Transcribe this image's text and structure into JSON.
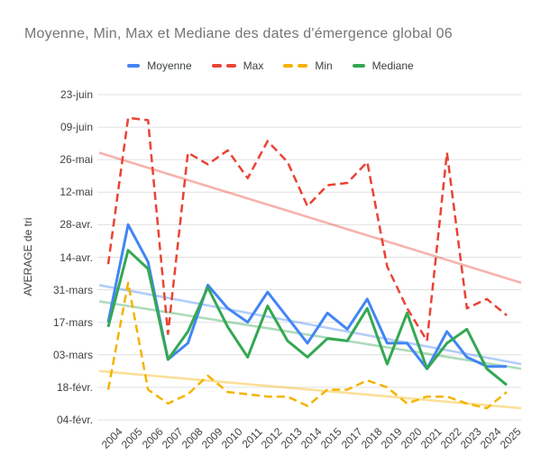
{
  "title": "Moyenne, Min, Max et Mediane des dates d'émergence global 06",
  "y_axis_title": "AVERAGE de tri",
  "colors": {
    "moyenne": "#4285F4",
    "max": "#EA4335",
    "min": "#F4B400",
    "mediane": "#34A853",
    "gridline": "#E0E0E0",
    "title_text": "#757575",
    "tick_text": "#424242"
  },
  "chart_data": {
    "type": "line",
    "title": "Moyenne, Min, Max et Mediane des dates d'émergence global 06",
    "ylabel": "AVERAGE de tri",
    "grid": "horizontal",
    "legend_position": "top",
    "categories": [
      "2004",
      "2005",
      "2006",
      "2007",
      "2008",
      "2009",
      "2010",
      "2011",
      "2012",
      "2013",
      "2014",
      "2015",
      "2017",
      "2018",
      "2019",
      "2020",
      "2021",
      "2022",
      "2023",
      "2024",
      "2025"
    ],
    "y_axis": {
      "tick_labels_top_to_bottom": [
        "23-juin",
        "09-juin",
        "26-mai",
        "12-mai",
        "28-avr.",
        "14-avr.",
        "31-mars",
        "17-mars",
        "03-mars",
        "18-févr.",
        "04-févr."
      ],
      "value_unit": "days after 04-févr.",
      "ylim_days": [
        0,
        140
      ]
    },
    "series": [
      {
        "name": "Moyenne",
        "color": "#4285F4",
        "style": "solid",
        "values_days": [
          42,
          84,
          68,
          26,
          33,
          58,
          48,
          42,
          55,
          44,
          33,
          46,
          39,
          52,
          33,
          33,
          22,
          38,
          27,
          23,
          23
        ],
        "values_dates": [
          "17-mars",
          "28-avr.",
          "12-avr.",
          "01-mars",
          "08-mars",
          "02-avr.",
          "23-mars",
          "17-mars",
          "30-mars",
          "19-mars",
          "08-mars",
          "21-mars",
          "14-mars",
          "27-mars",
          "08-mars",
          "08-mars",
          "26-févr.",
          "13-mars",
          "02-mars",
          "27-févr.",
          "27-févr."
        ]
      },
      {
        "name": "Max",
        "color": "#EA4335",
        "style": "dashed",
        "values_days": [
          67,
          130,
          129,
          37,
          115,
          110,
          116,
          104,
          120,
          111,
          92,
          101,
          102,
          111,
          66,
          48,
          34,
          115,
          48,
          52,
          45
        ],
        "values_dates": [
          "11-avr.",
          "13-juin",
          "12-juin",
          "12-mars",
          "29-mai",
          "24-mai",
          "30-mai",
          "18-mai",
          "03-juin",
          "25-mai",
          "06-mai",
          "15-mai",
          "16-mai",
          "25-mai",
          "10-avr.",
          "23-mars",
          "09-mars",
          "29-mai",
          "23-mars",
          "27-mars",
          "20-mars"
        ]
      },
      {
        "name": "Min",
        "color": "#F4B400",
        "style": "dashed",
        "values_days": [
          13,
          59,
          13,
          7,
          11,
          19,
          12,
          11,
          10,
          10,
          6,
          13,
          13,
          17,
          14,
          7,
          10,
          10,
          7,
          5,
          12
        ],
        "values_dates": [
          "17-févr.",
          "03-avr.",
          "17-févr.",
          "11-févr.",
          "15-févr.",
          "23-févr.",
          "16-févr.",
          "15-févr.",
          "14-févr.",
          "14-févr.",
          "10-févr.",
          "17-févr.",
          "17-févr.",
          "21-févr.",
          "18-févr.",
          "11-févr.",
          "14-févr.",
          "14-févr.",
          "11-févr.",
          "09-févr.",
          "16-févr."
        ]
      },
      {
        "name": "Mediane",
        "color": "#34A853",
        "style": "solid",
        "values_days": [
          40,
          73,
          65,
          26,
          38,
          57,
          40,
          27,
          49,
          34,
          27,
          35,
          34,
          48,
          24,
          46,
          22,
          33,
          39,
          22,
          15
        ],
        "values_dates": [
          "15-mars",
          "17-avr.",
          "09-avr.",
          "01-mars",
          "13-mars",
          "01-avr.",
          "15-mars",
          "02-mars",
          "24-mars",
          "09-mars",
          "02-mars",
          "10-mars",
          "09-mars",
          "23-mars",
          "28-févr.",
          "21-mars",
          "26-févr.",
          "08-mars",
          "14-mars",
          "26-févr.",
          "19-févr."
        ]
      }
    ],
    "trendlines": [
      {
        "series": "Moyenne",
        "color": "#4285F4",
        "start_day": 58,
        "end_day": 24
      },
      {
        "series": "Max",
        "color": "#EA4335",
        "start_day": 115,
        "end_day": 59
      },
      {
        "series": "Min",
        "color": "#F4B400",
        "start_day": 21,
        "end_day": 5
      },
      {
        "series": "Mediane",
        "color": "#34A853",
        "start_day": 51,
        "end_day": 22
      }
    ]
  }
}
